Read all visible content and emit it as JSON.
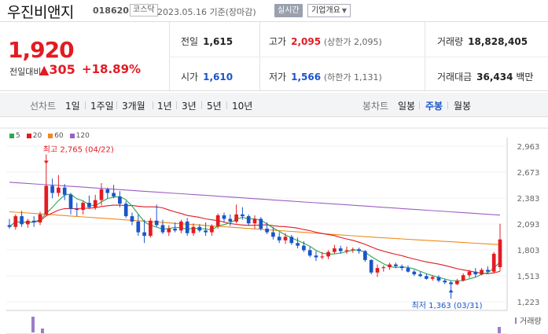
{
  "header": {
    "name": "우진비앤지",
    "code": "018620",
    "market": "코스닥",
    "date": "2023.05.16 기준(장마감)",
    "realtime_button": "실시간",
    "info_button": "기업개요"
  },
  "quote": {
    "price": "1,920",
    "change_label": "전일대비",
    "change": "305",
    "change_pct": "+18.89%",
    "prev_close_label": "전일",
    "prev_close": "1,615",
    "high_label": "고가",
    "high": "2,095",
    "upper_limit": "(상한가 2,095)",
    "volume_label": "거래량",
    "volume": "18,828,405",
    "open_label": "시가",
    "open": "1,610",
    "low_label": "저가",
    "low": "1,566",
    "lower_limit": "(하한가 1,131)",
    "amount_label": "거래대금",
    "amount": "36,434",
    "amount_unit": "백만"
  },
  "tabs": {
    "line_label": "선차트",
    "line_items": [
      "1일",
      "1주일",
      "3개월",
      "1년",
      "3년",
      "5년",
      "10년"
    ],
    "candle_label": "봉차트",
    "candle_items": [
      "일봉",
      "주봉",
      "월봉"
    ],
    "candle_selected": "주봉"
  },
  "colors": {
    "up": "#e31b23",
    "down": "#1a55c9",
    "ma5": "#2da84f",
    "ma20": "#e31b23",
    "ma60": "#f08a1c",
    "ma120": "#9b5fc4"
  },
  "chart_data": {
    "type": "candlestick",
    "legend": [
      "5",
      "20",
      "60",
      "120"
    ],
    "y_ticks": [
      "2,963",
      "2,673",
      "2,383",
      "2,093",
      "1,803",
      "1,513",
      "1,223"
    ],
    "ylim": [
      1223,
      2963
    ],
    "high_annotation": "최고 2,765 (04/22)",
    "low_annotation": "최저 1,363 (03/31)",
    "volume_label": "거래량",
    "candles": [
      [
        2080,
        2150,
        2040,
        2060
      ],
      [
        2060,
        2200,
        2030,
        2180
      ],
      [
        2180,
        2240,
        2060,
        2090
      ],
      [
        2090,
        2150,
        2050,
        2130
      ],
      [
        2130,
        2180,
        2060,
        2110
      ],
      [
        2110,
        2230,
        2080,
        2200
      ],
      [
        2200,
        2765,
        2180,
        2520
      ],
      [
        2520,
        2600,
        2380,
        2440
      ],
      [
        2440,
        2640,
        2400,
        2500
      ],
      [
        2500,
        2540,
        2360,
        2420
      ],
      [
        2420,
        2440,
        2200,
        2260
      ],
      [
        2260,
        2330,
        2180,
        2250
      ],
      [
        2250,
        2350,
        2200,
        2330
      ],
      [
        2330,
        2410,
        2260,
        2280
      ],
      [
        2280,
        2420,
        2250,
        2360
      ],
      [
        2360,
        2550,
        2300,
        2480
      ],
      [
        2480,
        2500,
        2380,
        2440
      ],
      [
        2440,
        2530,
        2380,
        2400
      ],
      [
        2400,
        2460,
        2280,
        2320
      ],
      [
        2320,
        2350,
        2160,
        2180
      ],
      [
        2180,
        2220,
        2080,
        2120
      ],
      [
        2120,
        2200,
        1960,
        2000
      ],
      [
        2000,
        2140,
        1880,
        1960
      ],
      [
        1960,
        2160,
        1940,
        2130
      ],
      [
        2130,
        2310,
        2060,
        2080
      ],
      [
        2080,
        2140,
        1980,
        2000
      ],
      [
        2000,
        2080,
        1960,
        2040
      ],
      [
        2040,
        2110,
        2000,
        2020
      ],
      [
        2020,
        2140,
        1990,
        2120
      ],
      [
        2120,
        2160,
        1960,
        1990
      ],
      [
        1990,
        2100,
        1960,
        2060
      ],
      [
        2060,
        2090,
        2000,
        2020
      ],
      [
        2020,
        2110,
        1960,
        2000
      ],
      [
        2000,
        2090,
        1960,
        2070
      ],
      [
        2070,
        2210,
        2040,
        2190
      ],
      [
        2190,
        2220,
        2110,
        2150
      ],
      [
        2150,
        2200,
        2070,
        2120
      ],
      [
        2120,
        2310,
        2100,
        2200
      ],
      [
        2200,
        2280,
        2140,
        2180
      ],
      [
        2180,
        2200,
        2080,
        2100
      ],
      [
        2100,
        2190,
        2040,
        2150
      ],
      [
        2150,
        2170,
        2020,
        2040
      ],
      [
        2040,
        2110,
        1980,
        2000
      ],
      [
        2000,
        2060,
        1920,
        1950
      ],
      [
        1950,
        2000,
        1880,
        1910
      ],
      [
        1910,
        1990,
        1870,
        1950
      ],
      [
        1950,
        1970,
        1860,
        1880
      ],
      [
        1880,
        1940,
        1820,
        1850
      ],
      [
        1850,
        1900,
        1780,
        1800
      ],
      [
        1800,
        1840,
        1720,
        1740
      ],
      [
        1740,
        1790,
        1680,
        1720
      ],
      [
        1720,
        1780,
        1700,
        1730
      ],
      [
        1730,
        1800,
        1700,
        1780
      ],
      [
        1780,
        1860,
        1760,
        1820
      ],
      [
        1820,
        1850,
        1760,
        1790
      ],
      [
        1790,
        1840,
        1760,
        1800
      ],
      [
        1800,
        1830,
        1770,
        1810
      ],
      [
        1810,
        1830,
        1760,
        1790
      ],
      [
        1790,
        1800,
        1670,
        1690
      ],
      [
        1690,
        1700,
        1530,
        1550
      ],
      [
        1550,
        1640,
        1500,
        1600
      ],
      [
        1600,
        1630,
        1560,
        1610
      ],
      [
        1610,
        1660,
        1580,
        1640
      ],
      [
        1640,
        1660,
        1600,
        1620
      ],
      [
        1620,
        1640,
        1570,
        1600
      ],
      [
        1600,
        1630,
        1550,
        1560
      ],
      [
        1560,
        1580,
        1510,
        1530
      ],
      [
        1530,
        1560,
        1500,
        1510
      ],
      [
        1510,
        1540,
        1470,
        1480
      ],
      [
        1480,
        1520,
        1460,
        1500
      ],
      [
        1500,
        1520,
        1440,
        1460
      ],
      [
        1460,
        1480,
        1420,
        1440
      ],
      [
        1440,
        1460,
        1363,
        1420
      ],
      [
        1420,
        1480,
        1410,
        1460
      ],
      [
        1460,
        1540,
        1450,
        1520
      ],
      [
        1520,
        1580,
        1490,
        1560
      ],
      [
        1560,
        1600,
        1500,
        1530
      ],
      [
        1530,
        1600,
        1520,
        1580
      ],
      [
        1580,
        1620,
        1540,
        1560
      ],
      [
        1560,
        1780,
        1540,
        1760
      ],
      [
        1610,
        2095,
        1566,
        1920
      ]
    ]
  }
}
